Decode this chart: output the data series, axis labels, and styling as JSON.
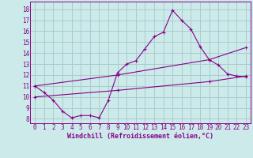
{
  "title": "",
  "xlabel": "Windchill (Refroidissement éolien,°C)",
  "ylabel": "",
  "bg_color": "#cceaea",
  "grid_color": "#aacccc",
  "line_color": "#880088",
  "x_ticks": [
    0,
    1,
    2,
    3,
    4,
    5,
    6,
    7,
    8,
    9,
    10,
    11,
    12,
    13,
    14,
    15,
    16,
    17,
    18,
    19,
    20,
    21,
    22,
    23
  ],
  "y_ticks": [
    8,
    9,
    10,
    11,
    12,
    13,
    14,
    15,
    16,
    17,
    18
  ],
  "ylim": [
    7.6,
    18.7
  ],
  "xlim": [
    -0.5,
    23.5
  ],
  "line1_x": [
    0,
    1,
    2,
    3,
    4,
    5,
    6,
    7,
    8,
    9,
    10,
    11,
    12,
    13,
    14,
    15,
    16,
    17,
    18,
    19,
    20,
    21,
    22,
    23
  ],
  "line1_y": [
    11.0,
    10.4,
    9.7,
    8.7,
    8.1,
    8.3,
    8.3,
    8.1,
    9.7,
    12.2,
    13.0,
    13.3,
    14.4,
    15.5,
    15.9,
    17.9,
    17.0,
    16.2,
    14.6,
    13.4,
    12.9,
    12.1,
    11.9,
    11.85
  ],
  "line2_x": [
    0,
    9,
    19,
    23
  ],
  "line2_y": [
    11.0,
    12.0,
    13.4,
    14.5
  ],
  "line3_x": [
    0,
    9,
    19,
    23
  ],
  "line3_y": [
    10.0,
    10.6,
    11.4,
    11.9
  ],
  "tick_fontsize": 5.5,
  "xlabel_fontsize": 6.0,
  "marker_size": 2.5,
  "lw": 0.8
}
